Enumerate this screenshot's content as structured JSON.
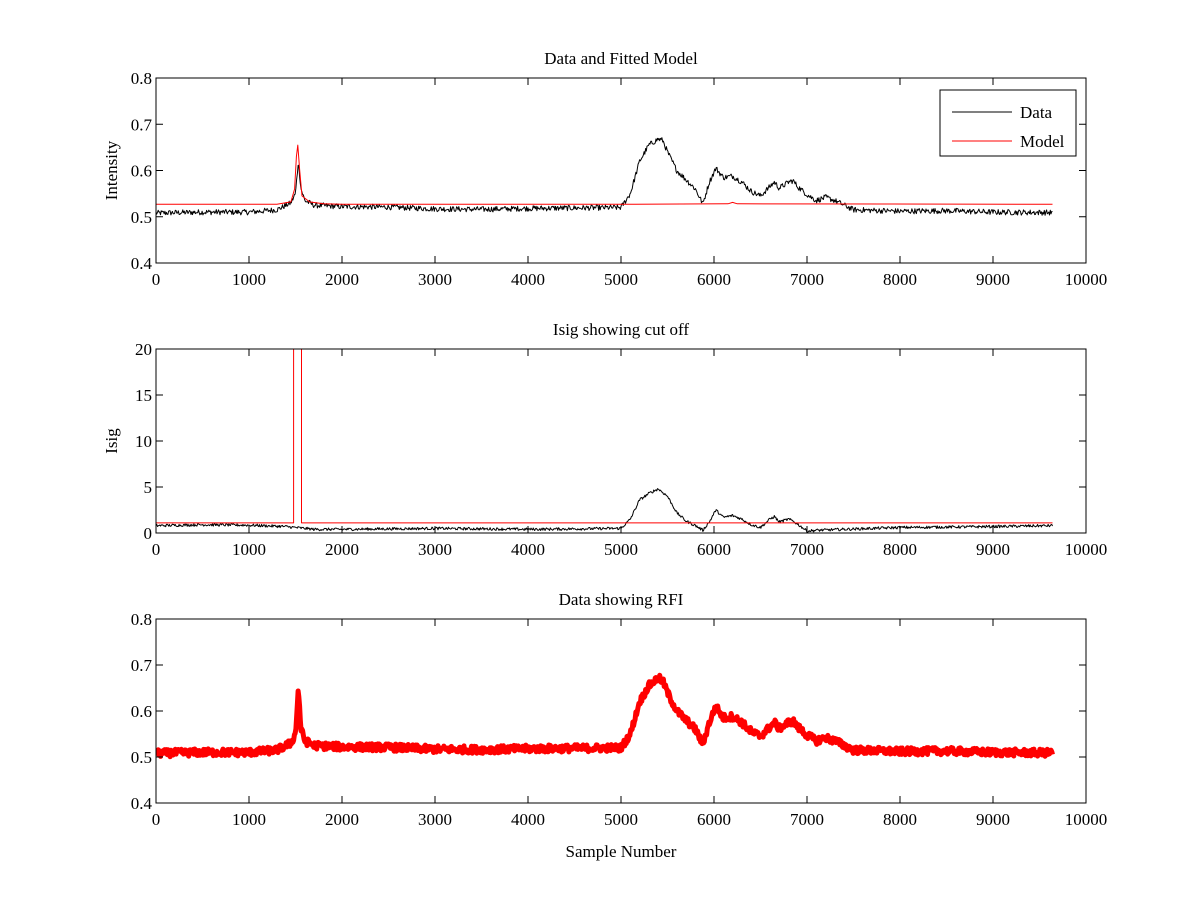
{
  "figure": {
    "background": "#ffffff",
    "axes_color": "#000000"
  },
  "chart_data": [
    {
      "type": "line",
      "title": "Data and Fitted Model",
      "xlabel": "",
      "ylabel": "Intensity",
      "xlim": [
        0,
        10000
      ],
      "ylim": [
        0.4,
        0.8
      ],
      "xticks": [
        0,
        1000,
        2000,
        3000,
        4000,
        5000,
        6000,
        7000,
        8000,
        9000,
        10000
      ],
      "yticks": [
        0.4,
        0.5,
        0.6,
        0.7,
        0.8
      ],
      "grid": false,
      "legend": {
        "position": "top-right",
        "entries": [
          "Data",
          "Model"
        ]
      },
      "series": [
        {
          "name": "Data",
          "color": "#000000",
          "noise": 0.006,
          "x": [
            0,
            500,
            1000,
            1300,
            1450,
            1500,
            1530,
            1560,
            1600,
            1700,
            2000,
            2500,
            3000,
            3500,
            4000,
            4500,
            5000,
            5100,
            5200,
            5300,
            5400,
            5450,
            5500,
            5600,
            5700,
            5800,
            5880,
            5950,
            6020,
            6100,
            6200,
            6300,
            6400,
            6500,
            6600,
            6650,
            6700,
            6750,
            6800,
            6850,
            6900,
            7000,
            7100,
            7200,
            7300,
            7400,
            7500,
            8000,
            8500,
            9000,
            9640
          ],
          "y": [
            0.508,
            0.51,
            0.51,
            0.515,
            0.53,
            0.55,
            0.62,
            0.56,
            0.535,
            0.525,
            0.522,
            0.521,
            0.517,
            0.516,
            0.518,
            0.519,
            0.52,
            0.55,
            0.62,
            0.655,
            0.668,
            0.665,
            0.64,
            0.6,
            0.58,
            0.56,
            0.528,
            0.575,
            0.605,
            0.585,
            0.588,
            0.575,
            0.555,
            0.545,
            0.565,
            0.575,
            0.562,
            0.568,
            0.575,
            0.578,
            0.565,
            0.548,
            0.535,
            0.542,
            0.535,
            0.525,
            0.515,
            0.512,
            0.513,
            0.51,
            0.509
          ]
        },
        {
          "name": "Model",
          "color": "#ff0000",
          "noise": 0,
          "x": [
            0,
            1300,
            1450,
            1490,
            1510,
            1525,
            1545,
            1570,
            1650,
            1800,
            2000,
            5000,
            6150,
            6200,
            6250,
            9640
          ],
          "y": [
            0.527,
            0.527,
            0.532,
            0.56,
            0.63,
            0.655,
            0.6,
            0.545,
            0.532,
            0.528,
            0.527,
            0.527,
            0.528,
            0.531,
            0.528,
            0.527
          ]
        }
      ]
    },
    {
      "type": "line",
      "title": "Isig showing cut off",
      "xlabel": "",
      "ylabel": "Isig",
      "xlim": [
        0,
        10000
      ],
      "ylim": [
        0,
        20
      ],
      "xticks": [
        0,
        1000,
        2000,
        3000,
        4000,
        5000,
        6000,
        7000,
        8000,
        9000,
        10000
      ],
      "yticks": [
        0,
        5,
        10,
        15,
        20
      ],
      "grid": false,
      "series": [
        {
          "color": "#000000",
          "noise": 0.15,
          "x": [
            0,
            500,
            1000,
            1400,
            1700,
            2000,
            3000,
            4000,
            5000,
            5100,
            5200,
            5300,
            5400,
            5500,
            5600,
            5700,
            5800,
            5880,
            5950,
            6020,
            6100,
            6200,
            6300,
            6400,
            6500,
            6600,
            6650,
            6700,
            6800,
            6850,
            6950,
            7000,
            7100,
            8000,
            9000,
            9640
          ],
          "y": [
            0.8,
            0.9,
            0.85,
            0.7,
            0.4,
            0.4,
            0.5,
            0.4,
            0.5,
            1.5,
            3.6,
            4.3,
            4.8,
            4.0,
            2.2,
            1.3,
            0.8,
            0.3,
            1.2,
            2.5,
            1.7,
            1.9,
            1.5,
            0.9,
            0.6,
            1.5,
            1.8,
            1.2,
            1.5,
            1.3,
            0.6,
            0.2,
            0.3,
            0.6,
            0.7,
            0.8
          ]
        },
        {
          "color": "#ff0000",
          "noise": 0,
          "x": [
            0,
            1480,
            1480,
            1565,
            1565,
            9640
          ],
          "y": [
            1.1,
            1.1,
            20,
            20,
            1.1,
            1.1
          ]
        }
      ]
    },
    {
      "type": "scatter",
      "title": "Data showing RFI",
      "xlabel": "Sample Number",
      "ylabel": "",
      "xlim": [
        0,
        10000
      ],
      "ylim": [
        0.4,
        0.8
      ],
      "xticks": [
        0,
        1000,
        2000,
        3000,
        4000,
        5000,
        6000,
        7000,
        8000,
        9000,
        10000
      ],
      "yticks": [
        0.4,
        0.5,
        0.6,
        0.7,
        0.8
      ],
      "grid": false,
      "series": [
        {
          "color": "#ff0000",
          "noise": 0.008,
          "x": [
            0,
            500,
            1000,
            1300,
            1450,
            1500,
            1530,
            1560,
            1600,
            1700,
            2000,
            2500,
            3000,
            3500,
            4000,
            4500,
            5000,
            5100,
            5200,
            5300,
            5400,
            5450,
            5500,
            5600,
            5700,
            5800,
            5880,
            5950,
            6020,
            6100,
            6200,
            6300,
            6400,
            6500,
            6600,
            6650,
            6700,
            6750,
            6800,
            6850,
            6900,
            7000,
            7100,
            7200,
            7300,
            7400,
            7500,
            8000,
            8500,
            9000,
            9640
          ],
          "y": [
            0.508,
            0.51,
            0.51,
            0.515,
            0.53,
            0.55,
            0.65,
            0.56,
            0.535,
            0.525,
            0.522,
            0.521,
            0.517,
            0.516,
            0.518,
            0.519,
            0.52,
            0.55,
            0.62,
            0.655,
            0.672,
            0.665,
            0.64,
            0.6,
            0.58,
            0.56,
            0.528,
            0.575,
            0.61,
            0.585,
            0.588,
            0.575,
            0.555,
            0.545,
            0.565,
            0.575,
            0.562,
            0.568,
            0.575,
            0.578,
            0.565,
            0.548,
            0.535,
            0.542,
            0.535,
            0.525,
            0.515,
            0.512,
            0.513,
            0.51,
            0.509
          ]
        }
      ]
    }
  ]
}
